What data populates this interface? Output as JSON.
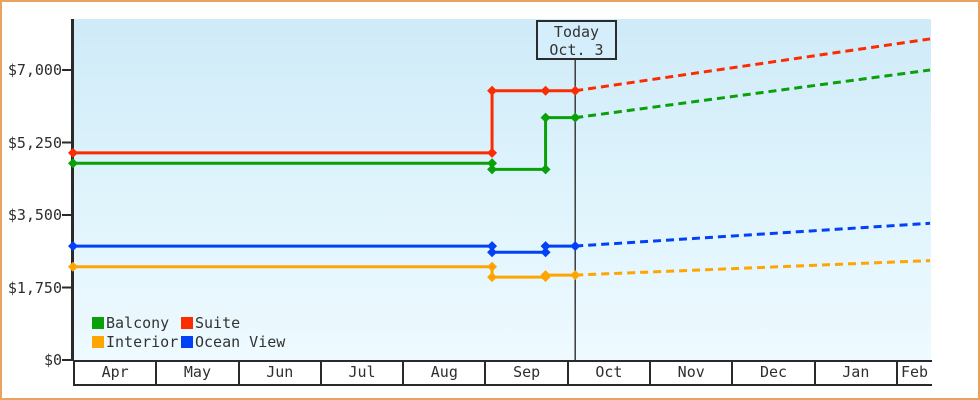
{
  "chart_data": {
    "type": "line",
    "description": "Cruise cabin price history by category with dashed future projection",
    "x_axis": {
      "unit": "months",
      "labels": [
        "Apr",
        "May",
        "Jun",
        "Jul",
        "Aug",
        "Sep",
        "Oct",
        "Nov",
        "Dec",
        "Jan",
        "Feb"
      ]
    },
    "y_axis": {
      "ticks": [
        {
          "label": "$0",
          "value": 0
        },
        {
          "label": "$1,750",
          "value": 1750
        },
        {
          "label": "$3,500",
          "value": 3500
        },
        {
          "label": "$5,250",
          "value": 5250
        },
        {
          "label": "$7,000",
          "value": 7000
        }
      ],
      "range": [
        0,
        8250
      ],
      "grid": false
    },
    "today": {
      "line1": "Today",
      "line2": "Oct. 3",
      "x_month": 6.1
    },
    "series": [
      {
        "name": "Suite",
        "color": "#fb2c00",
        "points": [
          {
            "x": 0,
            "value": 5000
          },
          {
            "x": 5.09,
            "value": 5000
          },
          {
            "x": 5.09,
            "value": 6500
          },
          {
            "x": 5.74,
            "value": 6500
          },
          {
            "x": 6.1,
            "value": 6500
          }
        ],
        "projected": {
          "x": 10.41,
          "value": 7750
        }
      },
      {
        "name": "Balcony",
        "color": "#0aa00a",
        "points": [
          {
            "x": 0,
            "value": 4750
          },
          {
            "x": 5.09,
            "value": 4750
          },
          {
            "x": 5.09,
            "value": 4600
          },
          {
            "x": 5.74,
            "value": 4600
          },
          {
            "x": 5.74,
            "value": 5850
          },
          {
            "x": 6.1,
            "value": 5850
          }
        ],
        "projected": {
          "x": 10.41,
          "value": 7000
        }
      },
      {
        "name": "Ocean View",
        "color": "#0241f5",
        "points": [
          {
            "x": 0,
            "value": 2750
          },
          {
            "x": 5.09,
            "value": 2750
          },
          {
            "x": 5.09,
            "value": 2600
          },
          {
            "x": 5.74,
            "value": 2600
          },
          {
            "x": 5.74,
            "value": 2750
          },
          {
            "x": 6.1,
            "value": 2750
          }
        ],
        "projected": {
          "x": 10.41,
          "value": 3300
        }
      },
      {
        "name": "Interior",
        "color": "#ffa502",
        "points": [
          {
            "x": 0,
            "value": 2250
          },
          {
            "x": 5.09,
            "value": 2250
          },
          {
            "x": 5.09,
            "value": 2000
          },
          {
            "x": 5.74,
            "value": 2000
          },
          {
            "x": 5.74,
            "value": 2050
          },
          {
            "x": 6.1,
            "value": 2050
          }
        ],
        "projected": {
          "x": 10.41,
          "value": 2400
        }
      }
    ],
    "legend": [
      {
        "label": "Balcony",
        "color": "#0aa00a"
      },
      {
        "label": "Suite",
        "color": "#fb2c00"
      },
      {
        "label": "Interior",
        "color": "#ffa502"
      },
      {
        "label": "Ocean View",
        "color": "#0241f5"
      }
    ],
    "styles": {
      "frame_border": "#e9a35f",
      "plot_bg_top": "#cfeaf8",
      "plot_bg_bottom": "#eefaff",
      "axis": "#2a2a2a",
      "text": "#2e2e2e",
      "today_line": "#3c3c3c",
      "today_box_bg": "#d5eefb"
    }
  }
}
